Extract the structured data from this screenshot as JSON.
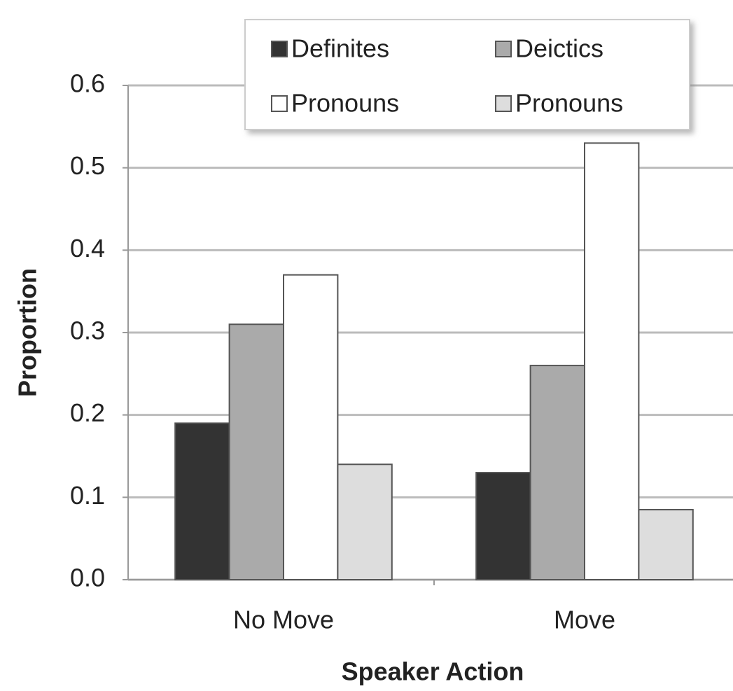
{
  "chart_data": {
    "type": "bar",
    "categories": [
      "No Move",
      "Move"
    ],
    "series": [
      {
        "name": "Definites",
        "color": "#333333",
        "values": [
          0.19,
          0.13
        ]
      },
      {
        "name": "Deictics",
        "color": "#aaaaaa",
        "values": [
          0.31,
          0.26
        ]
      },
      {
        "name": "Pronouns",
        "color": "#ffffff",
        "values": [
          0.37,
          0.53
        ]
      },
      {
        "name": "Pronouns",
        "color": "#dddddd",
        "values": [
          0.14,
          0.085
        ]
      }
    ],
    "xlabel": "Speaker Action",
    "ylabel": "Proportion",
    "ylim": [
      0,
      0.6
    ],
    "yticks": [
      {
        "value": 0,
        "label": "0.0"
      },
      0.1,
      0.2,
      0.3,
      0.4,
      0.5,
      0.6
    ],
    "grid": true,
    "legend": "top"
  }
}
